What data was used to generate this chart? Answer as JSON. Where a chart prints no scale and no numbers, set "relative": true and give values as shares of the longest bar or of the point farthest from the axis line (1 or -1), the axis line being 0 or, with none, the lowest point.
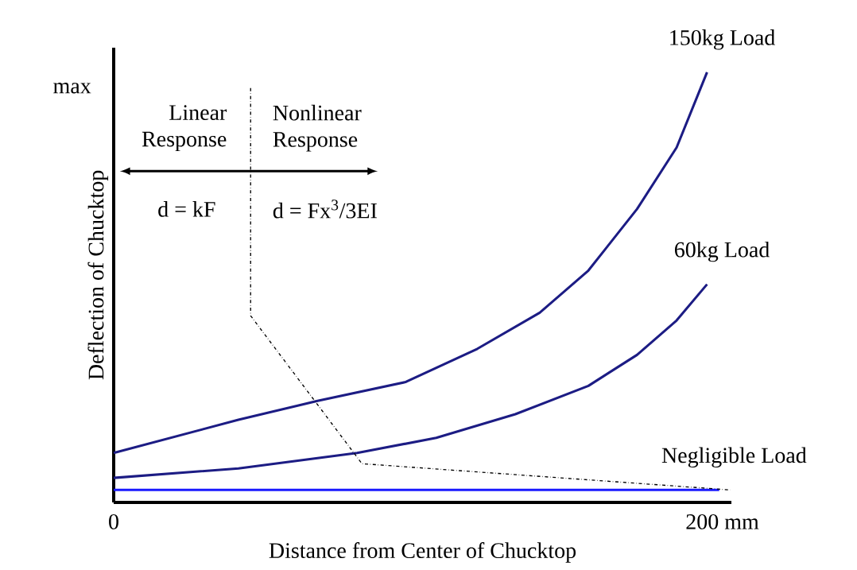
{
  "chart_data": {
    "type": "line",
    "relative": true,
    "xlabel": "Distance from Center of Chucktop",
    "ylabel": "Deflection of Chucktop",
    "xlim": [
      0,
      203
    ],
    "xticks": [
      0,
      {
        "value": 200,
        "label": "200 mm"
      }
    ],
    "marker": "none",
    "line_style": "solid",
    "series": [
      {
        "name": "150kg Load",
        "color": "#1c1c84",
        "x": [
          0,
          41,
          67,
          96,
          119.5,
          140,
          156,
          172,
          185,
          195
        ],
        "values": [
          0.115,
          0.192,
          0.236,
          0.28,
          0.357,
          0.441,
          0.539,
          0.682,
          0.825,
          1.0
        ]
      },
      {
        "name": "60kg Load",
        "color": "#1c1c84",
        "x": [
          0,
          41,
          80,
          106,
          132,
          156,
          172,
          185,
          195
        ],
        "values": [
          0.057,
          0.079,
          0.115,
          0.15,
          0.205,
          0.271,
          0.343,
          0.423,
          0.507
        ]
      },
      {
        "name": "Negligible Load",
        "color": "#1a1aff",
        "x": [
          0,
          199
        ],
        "values": [
          0.029,
          0.029
        ]
      },
      {
        "color": "#000000",
        "line_style": "dashed",
        "x": [
          45,
          45,
          81.6,
          202.6
        ],
        "values": [
          0.963,
          0.434,
          0.09,
          0.029
        ]
      }
    ],
    "annotations": [
      "max",
      "Linear Response",
      "Nonlinear Response",
      "d = kF",
      "d = Fx$^{3}$/3EI"
    ]
  }
}
